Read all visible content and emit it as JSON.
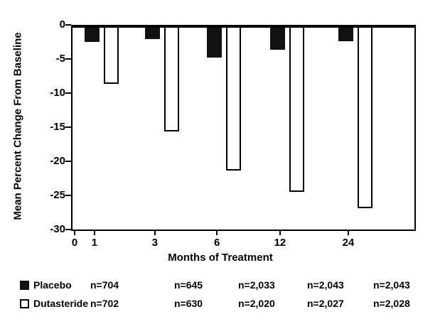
{
  "chart_data": {
    "type": "bar",
    "title": "",
    "xlabel": "Months of Treatment",
    "ylabel": "Mean Percent Change From Baseline",
    "x_origin_label": "0",
    "categories": [
      "1",
      "3",
      "6",
      "12",
      "24"
    ],
    "series": [
      {
        "name": "Placebo",
        "style": "filled",
        "color": "#111111",
        "values": [
          -2.5,
          -2.1,
          -4.8,
          -3.6,
          -2.4
        ]
      },
      {
        "name": "Dutasteride",
        "style": "open",
        "color": "#ffffff",
        "values": [
          -8.6,
          -15.6,
          -21.4,
          -24.5,
          -26.9
        ]
      }
    ],
    "ylim": [
      -30,
      0
    ],
    "yticks": [
      0,
      -5,
      -10,
      -15,
      -20,
      -25,
      -30
    ],
    "grid": false,
    "legend_position": "bottom"
  },
  "legend": {
    "rows": [
      {
        "label": "Placebo",
        "swatch": "filled",
        "counts": [
          "n=704",
          "n=645",
          "n=2,033",
          "n=2,043",
          "n=2,043"
        ]
      },
      {
        "label": "Dutasteride",
        "swatch": "open",
        "counts": [
          "n=702",
          "n=630",
          "n=2,020",
          "n=2,027",
          "n=2,028"
        ]
      }
    ]
  }
}
